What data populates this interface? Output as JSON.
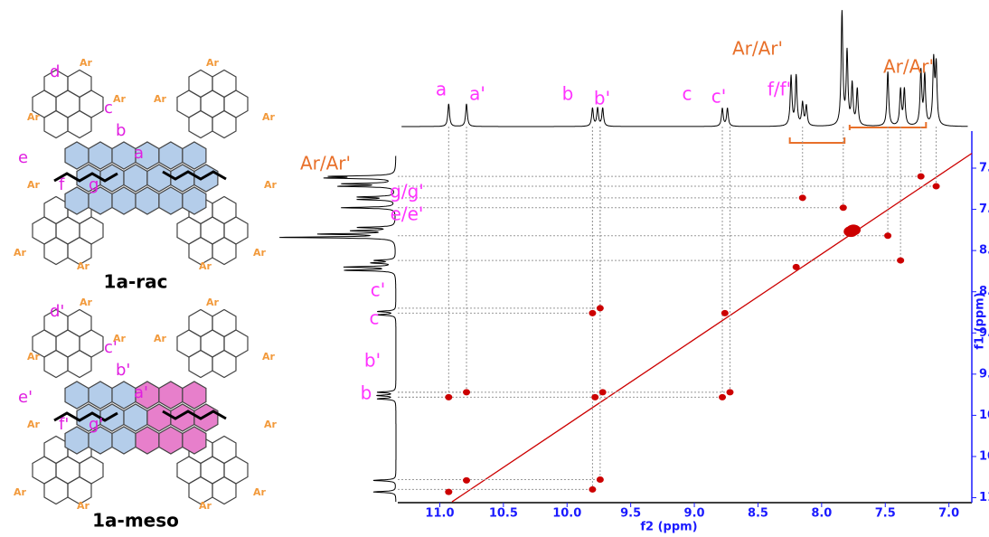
{
  "structures": {
    "rac": {
      "name": "1a-rac",
      "labels": [
        "d",
        "c",
        "b",
        "a",
        "e",
        "f",
        "g"
      ]
    },
    "meso": {
      "name": "1a-meso",
      "labels": [
        "d'",
        "c'",
        "b'",
        "a'",
        "e'",
        "f'",
        "g'"
      ]
    },
    "substituent": "Ar"
  },
  "chart_data": {
    "type": "scatter",
    "xlabel": "f2 (ppm)",
    "ylabel": "f1 (ppm)",
    "xlim": [
      11.33,
      6.82
    ],
    "ylim": [
      6.55,
      11.06
    ],
    "xticks": [
      {
        "value": 11,
        "label": "11.0"
      },
      10.5,
      {
        "value": 10,
        "label": "10.0"
      },
      9.5,
      {
        "value": 9,
        "label": "9.0"
      },
      8.5,
      {
        "value": 8,
        "label": "8.0"
      },
      7.5,
      {
        "value": 7,
        "label": "7.0"
      }
    ],
    "yticks": [
      {
        "value": 7,
        "label": "7.0"
      },
      7.5,
      {
        "value": 8,
        "label": "8.0"
      },
      8.5,
      {
        "value": 9,
        "label": "9.0"
      },
      9.5,
      {
        "value": 10,
        "label": "10.0"
      },
      10.5,
      {
        "value": 11,
        "label": "11.0"
      }
    ],
    "color": "#cc0000",
    "x": [
      10.93,
      10.79,
      9.8,
      9.74,
      10.93,
      10.79,
      9.8,
      9.74,
      8.78,
      8.72,
      8.15,
      7.83,
      7.22,
      7.1,
      7.38,
      7.48,
      9.78,
      9.72,
      8.76,
      8.2,
      7.77,
      7.75
    ],
    "values": [
      10.93,
      10.79,
      10.9,
      10.78,
      9.78,
      9.72,
      8.76,
      8.7,
      9.78,
      9.72,
      7.36,
      7.48,
      7.1,
      7.22,
      8.12,
      7.82,
      9.78,
      9.72,
      8.76,
      8.2,
      7.77,
      7.75
    ],
    "annotations": [
      "a",
      "a'",
      "b",
      "b'",
      "c",
      "c'",
      "Ar/Ar'",
      "f/f'",
      "Ar/Ar'",
      "Ar/Ar'",
      "g/g'",
      "e/e'",
      "c'",
      "c",
      "b'",
      "b"
    ]
  }
}
